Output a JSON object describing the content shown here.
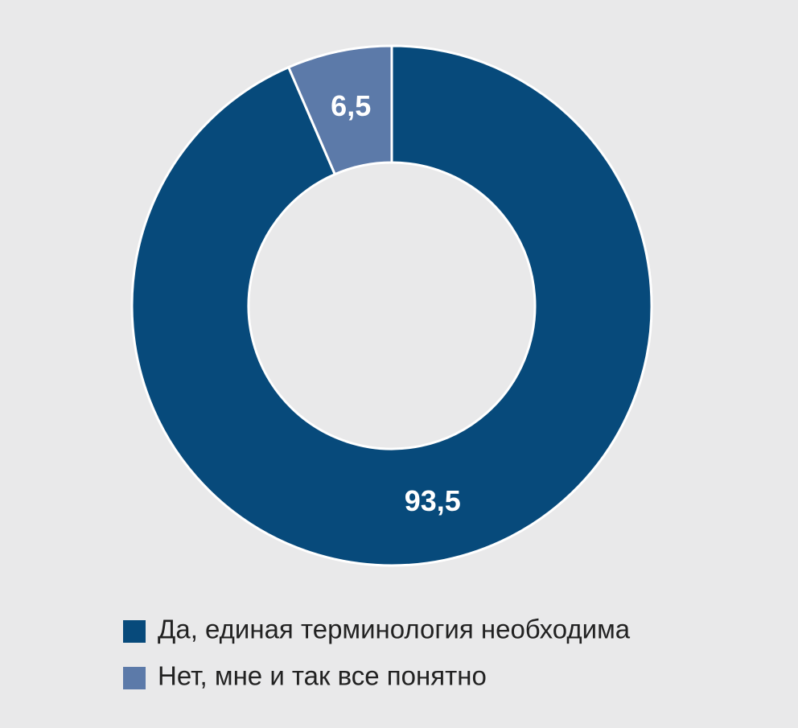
{
  "chart_data": {
    "type": "donut",
    "categories": [
      "Да, единая терминология необходима",
      "Нет, мне и так все понятно"
    ],
    "values": [
      93.5,
      6.5
    ],
    "value_labels": [
      "93,5",
      "6,5"
    ],
    "colors": [
      "#074a7b",
      "#5c7aa9"
    ]
  }
}
